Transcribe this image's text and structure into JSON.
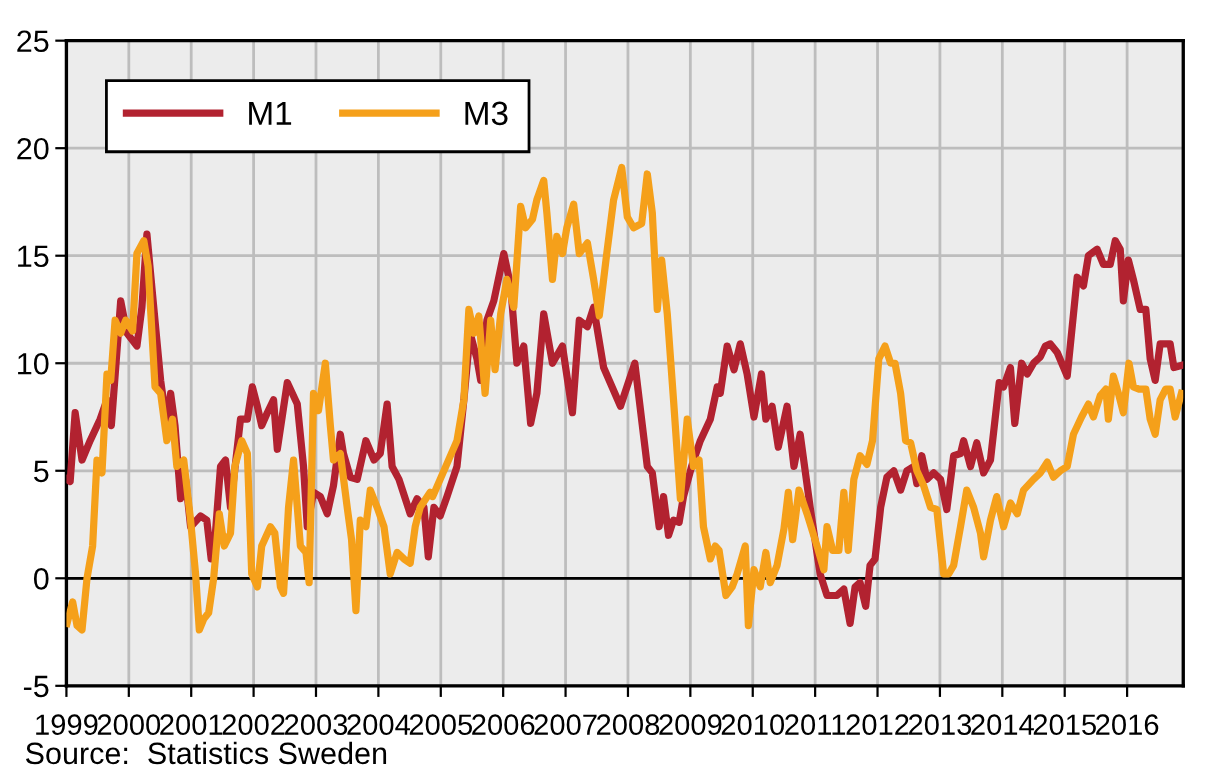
{
  "chart_data": {
    "type": "line",
    "xlim": [
      1999,
      2016.9
    ],
    "xticks": [
      1999,
      2000,
      2001,
      2002,
      2003,
      2004,
      2005,
      2006,
      2007,
      2008,
      2009,
      2010,
      2011,
      2012,
      2013,
      2014,
      2015,
      2016
    ],
    "ylim": [
      -5,
      25
    ],
    "yticks": [
      -5,
      0,
      5,
      10,
      15,
      20,
      25
    ],
    "grid": true,
    "legend": "top left",
    "marker": "none",
    "line_style": "solid",
    "ref_lines": [
      {
        "axis": "y",
        "value": 0,
        "color": "#000000"
      }
    ],
    "annotations": [
      "Source:  Statistics Sweden"
    ],
    "series": [
      {
        "name": "M1",
        "color": "#b22230",
        "x": [
          1999.01,
          1999.06,
          1999.14,
          1999.25,
          1999.38,
          1999.54,
          1999.65,
          1999.72,
          1999.87,
          1999.97,
          2000.13,
          2000.21,
          2000.29,
          2000.38,
          2000.51,
          2000.61,
          2000.67,
          2000.74,
          2000.83,
          2000.91,
          2000.99,
          2001.15,
          2001.25,
          2001.32,
          2001.38,
          2001.47,
          2001.55,
          2001.63,
          2001.79,
          2001.9,
          2001.98,
          2002.06,
          2002.13,
          2002.22,
          2002.32,
          2002.38,
          2002.54,
          2002.7,
          2002.8,
          2002.86,
          2002.96,
          2003.07,
          2003.18,
          2003.28,
          2003.39,
          2003.44,
          2003.55,
          2003.66,
          2003.8,
          2003.93,
          2004.03,
          2004.14,
          2004.22,
          2004.33,
          2004.51,
          2004.62,
          2004.73,
          2004.8,
          2004.89,
          2004.99,
          2005.1,
          2005.26,
          2005.37,
          2005.47,
          2005.58,
          2005.64,
          2005.74,
          2005.85,
          2006.01,
          2006.12,
          2006.22,
          2006.33,
          2006.44,
          2006.54,
          2006.65,
          2006.79,
          2006.95,
          2007.11,
          2007.22,
          2007.35,
          2007.45,
          2007.61,
          2007.88,
          2008.11,
          2008.31,
          2008.39,
          2008.5,
          2008.57,
          2008.65,
          2008.73,
          2008.82,
          2008.89,
          2009.02,
          2009.16,
          2009.32,
          2009.43,
          2009.48,
          2009.59,
          2009.7,
          2009.8,
          2009.91,
          2010.02,
          2010.14,
          2010.21,
          2010.31,
          2010.41,
          2010.55,
          2010.66,
          2010.76,
          2010.92,
          2011.08,
          2011.19,
          2011.35,
          2011.46,
          2011.56,
          2011.64,
          2011.72,
          2011.81,
          2011.88,
          2011.96,
          2012.05,
          2012.15,
          2012.26,
          2012.37,
          2012.47,
          2012.58,
          2012.63,
          2012.71,
          2012.79,
          2012.9,
          2013.01,
          2013.11,
          2013.22,
          2013.33,
          2013.38,
          2013.49,
          2013.59,
          2013.7,
          2013.81,
          2013.95,
          2014.02,
          2014.13,
          2014.2,
          2014.31,
          2014.4,
          2014.5,
          2014.61,
          2014.69,
          2014.77,
          2014.88,
          2015.04,
          2015.2,
          2015.3,
          2015.38,
          2015.52,
          2015.62,
          2015.73,
          2015.81,
          2015.89,
          2015.94,
          2016.02,
          2016.1,
          2016.21,
          2016.3,
          2016.37,
          2016.45,
          2016.53,
          2016.69,
          2016.75,
          2016.87
        ],
        "values": [
          4.6,
          4.5,
          7.7,
          5.5,
          6.4,
          7.4,
          8.3,
          7.1,
          12.9,
          11.4,
          10.8,
          12.6,
          16.0,
          13.2,
          9.2,
          7.1,
          8.6,
          7.1,
          3.7,
          4.6,
          2.4,
          2.9,
          2.7,
          0.9,
          1.8,
          5.2,
          5.5,
          3.3,
          7.4,
          7.4,
          8.9,
          8.0,
          7.1,
          7.7,
          8.3,
          6.0,
          9.1,
          8.1,
          5.2,
          2.4,
          4.0,
          3.8,
          3.0,
          4.3,
          6.7,
          5.8,
          4.7,
          4.6,
          6.4,
          5.5,
          5.8,
          8.1,
          5.2,
          4.6,
          3.0,
          3.7,
          3.3,
          1.0,
          3.3,
          2.9,
          3.8,
          5.2,
          8.3,
          11.4,
          10.2,
          9.2,
          12.0,
          12.9,
          15.1,
          13.6,
          10.0,
          10.8,
          7.2,
          8.6,
          12.3,
          10.0,
          10.8,
          7.7,
          12.0,
          11.7,
          12.6,
          9.8,
          8.0,
          10.0,
          5.2,
          4.9,
          2.4,
          3.8,
          2.0,
          2.7,
          2.6,
          3.8,
          5.2,
          6.4,
          7.4,
          8.9,
          8.6,
          10.8,
          9.7,
          10.9,
          9.5,
          7.5,
          9.5,
          7.4,
          8.0,
          6.1,
          8.0,
          5.2,
          6.7,
          3.3,
          0.2,
          -0.8,
          -0.8,
          -0.5,
          -2.1,
          -0.4,
          -0.2,
          -1.3,
          0.6,
          0.9,
          3.3,
          4.7,
          5.0,
          4.1,
          5.0,
          5.2,
          4.4,
          5.7,
          4.6,
          4.9,
          4.6,
          3.2,
          5.7,
          5.8,
          6.4,
          5.2,
          6.3,
          4.9,
          5.5,
          9.1,
          8.9,
          9.8,
          7.2,
          10.0,
          9.5,
          10.0,
          10.3,
          10.8,
          10.9,
          10.5,
          9.4,
          14.0,
          13.6,
          15.0,
          15.3,
          14.6,
          14.6,
          15.7,
          15.3,
          12.9,
          14.8,
          13.9,
          12.5,
          12.5,
          10.2,
          9.2,
          10.9,
          10.9,
          9.8,
          9.9
        ]
      },
      {
        "name": "M3",
        "color": "#f5a01a",
        "x": [
          1999.01,
          1999.1,
          1999.17,
          1999.25,
          1999.33,
          1999.42,
          1999.49,
          1999.57,
          1999.65,
          1999.71,
          1999.78,
          1999.87,
          1999.95,
          2000.06,
          2000.13,
          2000.24,
          2000.31,
          2000.42,
          2000.51,
          2000.61,
          2000.7,
          2000.77,
          2000.88,
          2000.99,
          2001.07,
          2001.13,
          2001.2,
          2001.28,
          2001.36,
          2001.45,
          2001.53,
          2001.63,
          2001.7,
          2001.81,
          2001.9,
          2001.97,
          2002.06,
          2002.13,
          2002.27,
          2002.34,
          2002.43,
          2002.48,
          2002.56,
          2002.64,
          2002.75,
          2002.84,
          2002.89,
          2002.96,
          2003.04,
          2003.15,
          2003.23,
          2003.28,
          2003.39,
          2003.5,
          2003.57,
          2003.64,
          2003.71,
          2003.8,
          2003.87,
          2003.98,
          2004.09,
          2004.19,
          2004.3,
          2004.41,
          2004.51,
          2004.59,
          2004.67,
          2004.83,
          2004.87,
          2004.99,
          2005.26,
          2005.37,
          2005.45,
          2005.53,
          2005.61,
          2005.71,
          2005.8,
          2005.87,
          2005.96,
          2006.06,
          2006.17,
          2006.28,
          2006.36,
          2006.47,
          2006.54,
          2006.65,
          2006.7,
          2006.79,
          2006.86,
          2006.95,
          2007.02,
          2007.13,
          2007.22,
          2007.35,
          2007.45,
          2007.54,
          2007.66,
          2007.77,
          2007.9,
          2007.99,
          2008.09,
          2008.22,
          2008.31,
          2008.39,
          2008.47,
          2008.54,
          2008.63,
          2008.73,
          2008.84,
          2008.95,
          2009.05,
          2009.14,
          2009.21,
          2009.32,
          2009.4,
          2009.46,
          2009.57,
          2009.67,
          2009.75,
          2009.88,
          2009.93,
          2010.02,
          2010.12,
          2010.21,
          2010.28,
          2010.39,
          2010.5,
          2010.57,
          2010.64,
          2010.74,
          2010.87,
          2011.03,
          2011.14,
          2011.19,
          2011.28,
          2011.38,
          2011.46,
          2011.53,
          2011.62,
          2011.72,
          2011.83,
          2011.92,
          2012.02,
          2012.12,
          2012.21,
          2012.28,
          2012.37,
          2012.45,
          2012.53,
          2012.63,
          2012.74,
          2012.85,
          2012.95,
          2013.06,
          2013.14,
          2013.22,
          2013.33,
          2013.43,
          2013.54,
          2013.65,
          2013.7,
          2013.81,
          2013.91,
          2014.02,
          2014.13,
          2014.24,
          2014.34,
          2014.5,
          2014.61,
          2014.72,
          2014.82,
          2014.93,
          2015.04,
          2015.14,
          2015.27,
          2015.38,
          2015.46,
          2015.57,
          2015.66,
          2015.7,
          2015.78,
          2015.87,
          2015.94,
          2016.03,
          2016.1,
          2016.19,
          2016.3,
          2016.37,
          2016.45,
          2016.53,
          2016.62,
          2016.69,
          2016.77,
          2016.87
        ],
        "values": [
          -2.1,
          -1.1,
          -2.2,
          -2.4,
          0.0,
          1.5,
          5.5,
          4.9,
          9.5,
          9.2,
          12.0,
          11.4,
          12.0,
          11.5,
          15.1,
          15.7,
          14.5,
          8.9,
          8.6,
          6.4,
          7.4,
          5.2,
          5.5,
          2.7,
          0.2,
          -2.4,
          -1.9,
          -1.6,
          0.0,
          3.0,
          1.5,
          2.1,
          5.2,
          6.4,
          5.8,
          0.2,
          -0.4,
          1.5,
          2.4,
          2.1,
          -0.4,
          -0.7,
          3.3,
          5.5,
          1.5,
          1.2,
          -0.2,
          8.6,
          7.8,
          10.0,
          7.1,
          5.5,
          5.8,
          3.3,
          1.8,
          -1.5,
          2.7,
          2.4,
          4.1,
          3.3,
          2.4,
          0.2,
          1.2,
          0.9,
          0.7,
          2.4,
          3.3,
          4.0,
          3.8,
          4.6,
          6.4,
          8.3,
          12.5,
          11.4,
          12.2,
          8.6,
          12.0,
          9.7,
          12.3,
          13.9,
          12.6,
          17.3,
          16.3,
          16.7,
          17.6,
          18.5,
          17.0,
          13.9,
          15.9,
          15.1,
          16.3,
          17.4,
          15.1,
          15.6,
          13.9,
          12.2,
          15.1,
          17.6,
          19.1,
          16.8,
          16.3,
          16.5,
          18.8,
          17.0,
          12.5,
          14.8,
          12.3,
          8.3,
          3.7,
          7.4,
          5.2,
          5.5,
          2.4,
          0.9,
          1.5,
          1.3,
          -0.8,
          -0.4,
          0.2,
          1.5,
          -2.2,
          0.4,
          -0.4,
          1.2,
          -0.2,
          0.6,
          2.3,
          4.0,
          1.8,
          4.1,
          3.0,
          1.5,
          0.4,
          2.4,
          1.3,
          1.3,
          4.0,
          1.3,
          4.6,
          5.7,
          5.3,
          6.4,
          10.2,
          10.8,
          10.0,
          10.0,
          8.6,
          6.4,
          6.3,
          5.0,
          4.3,
          3.3,
          3.2,
          0.2,
          0.2,
          0.6,
          2.4,
          4.1,
          3.3,
          2.1,
          1.0,
          2.7,
          3.8,
          2.4,
          3.5,
          3.0,
          4.1,
          4.6,
          4.9,
          5.4,
          4.7,
          5.0,
          5.2,
          6.7,
          7.5,
          8.1,
          7.5,
          8.5,
          8.8,
          7.4,
          9.4,
          8.5,
          7.7,
          10.0,
          8.9,
          8.8,
          8.8,
          7.4,
          6.7,
          8.3,
          8.8,
          8.8,
          7.5,
          8.6
        ]
      }
    ]
  }
}
